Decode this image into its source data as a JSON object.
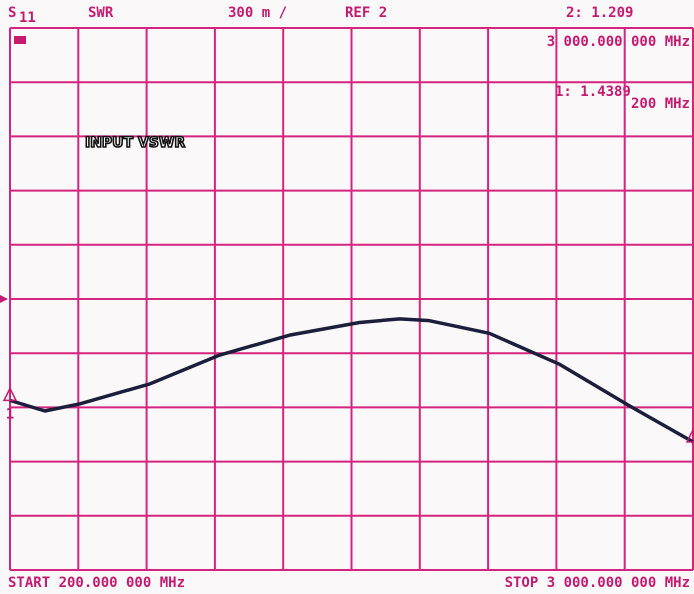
{
  "header": {
    "param": "S",
    "param_sub": "11",
    "format": "SWR",
    "scale": "300 m /",
    "ref": "REF 2",
    "marker2_readout": "2: 1.209",
    "marker2_freq": "3 000.000 000 MHz",
    "marker1_readout": "1: 1.4389",
    "marker1_freq": "200 MHz",
    "start": "START 200.000 000 MHz",
    "stop": "STOP 3 000.000 000 MHz"
  },
  "chart_data": {
    "type": "line",
    "title": "INPUT VSWR",
    "color": "#1b1f3c",
    "x": [
      200,
      343,
      487,
      773,
      1060,
      1346,
      1633,
      1797,
      1919,
      2165,
      2451,
      2738,
      3000
    ],
    "values": [
      1.4389,
      1.38,
      1.42,
      1.53,
      1.69,
      1.8,
      1.87,
      1.89,
      1.88,
      1.81,
      1.64,
      1.41,
      1.209
    ],
    "xlim": [
      200,
      3000
    ],
    "xticks": [
      200,
      480,
      760,
      1040,
      1320,
      1600,
      1880,
      2160,
      2440,
      2720,
      3000
    ],
    "ylim": [
      0.5,
      3.5
    ],
    "yticks": [
      0.5,
      0.8,
      1.1,
      1.4,
      1.7,
      2,
      2.3,
      2.6,
      2.9,
      3.2,
      3.5
    ],
    "reference": 2,
    "grid": true,
    "markers": [
      {
        "label": "1",
        "index": 0
      },
      {
        "label": "2",
        "index": 12
      }
    ]
  }
}
